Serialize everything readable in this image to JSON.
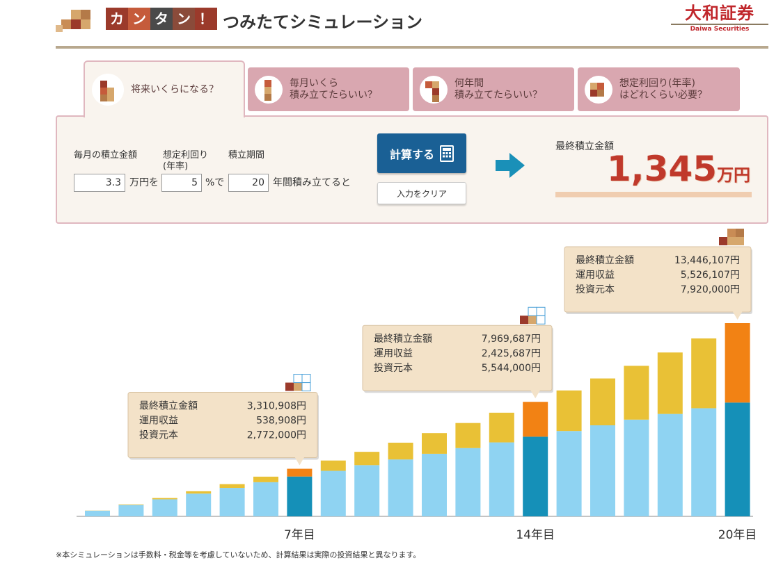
{
  "header": {
    "logo_chars": [
      "カ",
      "ン",
      "タ",
      "ン",
      "！"
    ],
    "logo_colors": [
      "#9b3a2b",
      "#c55b3b",
      "#4a4a4a",
      "#8a4b3a",
      "#9b3a2b"
    ],
    "title": "つみたてシミュレーション",
    "brand_main": "大和証券",
    "brand_sub": "Daiwa Securities"
  },
  "tabs": [
    {
      "line1": "将来いくらになる？",
      "line2": "",
      "active": true
    },
    {
      "line1": "毎月いくら",
      "line2": "積み立てたらいい？",
      "active": false
    },
    {
      "line1": "何年間",
      "line2": "積み立てたらいい？",
      "active": false
    },
    {
      "line1": "想定利回り(年率)",
      "line2": "はどれくらい必要？",
      "active": false
    }
  ],
  "form": {
    "monthly_label": "毎月の積立金額",
    "rate_label": "想定利回り",
    "rate_label2": "(年率)",
    "period_label": "積立期間",
    "monthly_value": "3.3",
    "monthly_unit": "万円を",
    "rate_value": "5",
    "rate_unit": "%で",
    "period_value": "20",
    "period_unit": "年間積み立てると",
    "calc_button": "計算する",
    "clear_button": "入力をクリア"
  },
  "result": {
    "label": "最終積立金額",
    "value": "1,345",
    "unit": "万円"
  },
  "chart_data": {
    "type": "bar",
    "stacked": true,
    "categories": [
      1,
      2,
      3,
      4,
      5,
      6,
      7,
      8,
      9,
      10,
      11,
      12,
      13,
      14,
      15,
      16,
      17,
      18,
      19,
      20
    ],
    "series": [
      {
        "name": "投資元本",
        "values": [
          396000,
          792000,
          1188000,
          1584000,
          1980000,
          2376000,
          2772000,
          3168000,
          3564000,
          3960000,
          4356000,
          4752000,
          5148000,
          5544000,
          5940000,
          6336000,
          6732000,
          7128000,
          7524000,
          7920000
        ]
      },
      {
        "name": "運用収益",
        "values": [
          9300,
          38400,
          89000,
          163000,
          262000,
          387000,
          538908,
          718000,
          927000,
          1167000,
          1439000,
          1745000,
          2066000,
          2425687,
          2823000,
          3262000,
          3745000,
          4277000,
          4860000,
          5526107
        ]
      }
    ],
    "highlight_indices": [
      6,
      13,
      19
    ],
    "x_labels": [
      {
        "index": 6,
        "text": "7年目"
      },
      {
        "index": 13,
        "text": "14年目"
      },
      {
        "index": 19,
        "text": "20年目"
      }
    ],
    "colors": {
      "principal": "#8fd3f2",
      "principal_highlight": "#1590b8",
      "gain": "#e9c136",
      "gain_highlight": "#f28214"
    }
  },
  "callouts": [
    {
      "index": 6,
      "rows": [
        [
          "最終積立金額",
          "3,310,908円"
        ],
        [
          "運用収益",
          "538,908円"
        ],
        [
          "投資元本",
          "2,772,000円"
        ]
      ]
    },
    {
      "index": 13,
      "rows": [
        [
          "最終積立金額",
          "7,969,687円"
        ],
        [
          "運用収益",
          "2,425,687円"
        ],
        [
          "投資元本",
          "5,544,000円"
        ]
      ]
    },
    {
      "index": 19,
      "rows": [
        [
          "最終積立金額",
          "13,446,107円"
        ],
        [
          "運用収益",
          "5,526,107円"
        ],
        [
          "投資元本",
          "7,920,000円"
        ]
      ]
    }
  ],
  "footer_note": "※本シミュレーションは手数料・税金等を考慮していないため、計算結果は実際の投資結果と異なります。"
}
